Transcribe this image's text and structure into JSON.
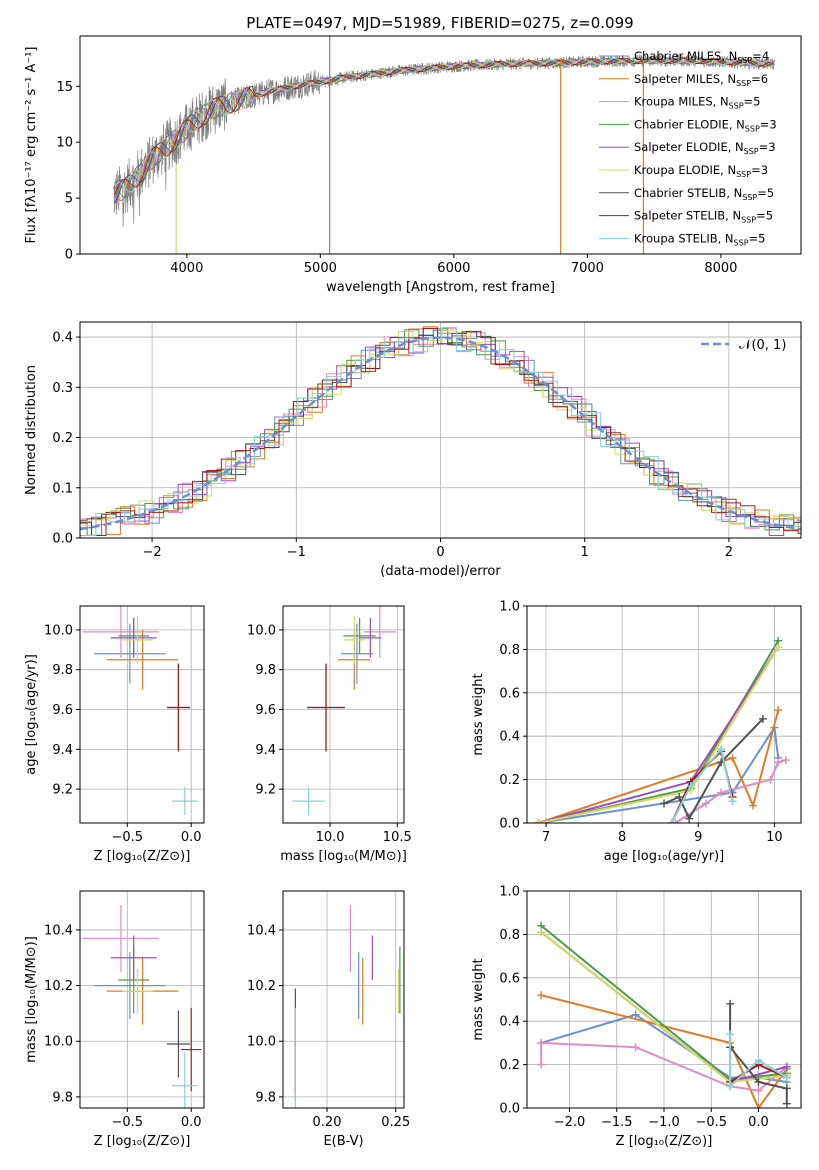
{
  "figure": {
    "title": "PLATE=0497, MJD=51989, FIBERID=0275, z=0.099"
  },
  "model_colors": [
    "#6a8fd9",
    "#e07b22",
    "#e38ac0",
    "#4f9b4f",
    "#9b4fc0",
    "#d4d85f",
    "#505050",
    "#a81b1b",
    "#86d1d6"
  ],
  "chart_data": [
    {
      "id": "spectrum",
      "type": "line",
      "title": "PLATE=0497, MJD=51989, FIBERID=0275, z=0.099",
      "xlabel": "wavelength [Angstrom, rest frame]",
      "ylabel": "Flux [fλ10⁻¹⁷ erg cm⁻² s⁻¹ A⁻¹]",
      "xlim": [
        3200,
        8600
      ],
      "ylim": [
        0,
        19.5
      ],
      "xticks": [
        4000,
        5000,
        6000,
        7000,
        8000
      ],
      "yticks": [
        0,
        5,
        10,
        15
      ],
      "grid": false,
      "legend_position": "right",
      "continuum": {
        "x": [
          3450,
          3550,
          3650,
          3750,
          3850,
          3950,
          4050,
          4200,
          4400,
          4600,
          4800,
          5000,
          5200,
          5400,
          5600,
          5800,
          6000,
          6200,
          6400,
          6600,
          6800,
          7000,
          7200,
          7400,
          7600,
          7800,
          8000,
          8200,
          8400
        ],
        "y": [
          5.2,
          6.0,
          7.2,
          8.6,
          9.6,
          10.6,
          11.8,
          13.0,
          13.8,
          14.5,
          15.0,
          15.4,
          15.8,
          16.1,
          16.4,
          16.6,
          16.8,
          16.9,
          17.0,
          17.05,
          17.1,
          17.2,
          17.25,
          17.3,
          17.3,
          17.3,
          17.2,
          17.1,
          17.0
        ]
      },
      "spikes": [
        {
          "x": 5070,
          "ymin": 0,
          "ymax": 19.5
        },
        {
          "x": 6800,
          "ymin": 0,
          "ymax": 17.5
        },
        {
          "x": 7420,
          "ymin": 0,
          "ymax": 17.5
        },
        {
          "x": 3920,
          "ymin": 0,
          "ymax": 8
        }
      ],
      "legend": [
        {
          "label": "Chabrier MILES, N",
          "sub": "SSP",
          "suffix": "=4"
        },
        {
          "label": "Salpeter MILES, N",
          "sub": "SSP",
          "suffix": "=6"
        },
        {
          "label": "Kroupa MILES, N",
          "sub": "SSP",
          "suffix": "=5"
        },
        {
          "label": "Chabrier ELODIE, N",
          "sub": "SSP",
          "suffix": "=3"
        },
        {
          "label": "Salpeter ELODIE, N",
          "sub": "SSP",
          "suffix": "=3"
        },
        {
          "label": "Kroupa ELODIE, N",
          "sub": "SSP",
          "suffix": "=3"
        },
        {
          "label": "Chabrier STELIB, N",
          "sub": "SSP",
          "suffix": "=5"
        },
        {
          "label": "Salpeter STELIB, N",
          "sub": "SSP",
          "suffix": "=5"
        },
        {
          "label": "Kroupa STELIB, N",
          "sub": "SSP",
          "suffix": "=5"
        }
      ]
    },
    {
      "id": "residuals",
      "type": "line",
      "xlabel": "(data-model)/error",
      "ylabel": "Normed distribution",
      "xlim": [
        -2.5,
        2.5
      ],
      "ylim": [
        0,
        0.43
      ],
      "xticks": [
        -2,
        -1,
        0,
        1,
        2
      ],
      "yticks": [
        0.0,
        0.1,
        0.2,
        0.3,
        0.4
      ],
      "grid": true,
      "legend_position": "top-right",
      "legend": [
        {
          "label": "𝒩(0, 1)"
        }
      ],
      "bin_width": 0.1,
      "normal_curve": {
        "mean": 0,
        "sigma": 1,
        "color": "#6a8fd9"
      }
    },
    {
      "id": "age-vs-Z",
      "type": "scatter",
      "xlabel": "Z [log₁₀(Z/Z⊙)]",
      "ylabel": "age  [log₁₀(age/yr)]",
      "xlim": [
        -0.87,
        0.1
      ],
      "ylim": [
        9.03,
        10.12
      ],
      "xticks": [
        -0.5,
        0.0
      ],
      "yticks": [
        9.2,
        9.4,
        9.6,
        9.8,
        10.0
      ],
      "grid": true,
      "points": [
        {
          "x": -0.48,
          "y": 9.88,
          "xerr": 0.28,
          "yerr": 0.15
        },
        {
          "x": -0.38,
          "y": 9.85,
          "xerr": 0.28,
          "yerr": 0.15
        },
        {
          "x": -0.55,
          "y": 9.99,
          "xerr": 0.3,
          "yerr": 0.13
        },
        {
          "x": -0.45,
          "y": 9.97,
          "xerr": 0.12,
          "yerr": 0.09
        },
        {
          "x": -0.45,
          "y": 9.96,
          "xerr": 0.18,
          "yerr": 0.1
        },
        {
          "x": -0.42,
          "y": 9.95,
          "xerr": 0.12,
          "yerr": 0.12
        },
        {
          "x": -0.1,
          "y": 9.61,
          "xerr": 0.09,
          "yerr": 0.22
        },
        {
          "x": -0.1,
          "y": 9.61,
          "xerr": 0.09,
          "yerr": 0.22
        },
        {
          "x": -0.05,
          "y": 9.14,
          "xerr": 0.1,
          "yerr": 0.07
        }
      ]
    },
    {
      "id": "age-vs-mass",
      "type": "scatter",
      "xlabel": "mass [log₁₀(M/M⊙)]",
      "ylabel": "",
      "xlim": [
        9.65,
        10.55
      ],
      "ylim": [
        9.03,
        10.12
      ],
      "xticks": [
        10.0,
        10.5
      ],
      "yticks": [
        9.2,
        9.4,
        9.6,
        9.8,
        10.0
      ],
      "grid": true,
      "points": [
        {
          "x": 10.2,
          "y": 9.88,
          "xerr": 0.12,
          "yerr": 0.15
        },
        {
          "x": 10.18,
          "y": 9.85,
          "xerr": 0.12,
          "yerr": 0.15
        },
        {
          "x": 10.37,
          "y": 9.99,
          "xerr": 0.12,
          "yerr": 0.13
        },
        {
          "x": 10.22,
          "y": 9.97,
          "xerr": 0.12,
          "yerr": 0.09
        },
        {
          "x": 10.3,
          "y": 9.96,
          "xerr": 0.08,
          "yerr": 0.1
        },
        {
          "x": 10.18,
          "y": 9.95,
          "xerr": 0.08,
          "yerr": 0.12
        },
        {
          "x": 9.97,
          "y": 9.61,
          "xerr": 0.14,
          "yerr": 0.22
        },
        {
          "x": 9.97,
          "y": 9.61,
          "xerr": 0.14,
          "yerr": 0.22
        },
        {
          "x": 9.84,
          "y": 9.14,
          "xerr": 0.12,
          "yerr": 0.07
        }
      ]
    },
    {
      "id": "weight-vs-age",
      "type": "line",
      "xlabel": "age  [log₁₀(age/yr)]",
      "ylabel": "mass weight",
      "xlim": [
        6.75,
        10.35
      ],
      "ylim": [
        0,
        1.0
      ],
      "xticks": [
        7,
        8,
        9,
        10
      ],
      "yticks": [
        0.0,
        0.2,
        0.4,
        0.6,
        0.8,
        1.0
      ],
      "grid": true,
      "series": [
        {
          "x": [
            6.9,
            9.45,
            10.0,
            10.05
          ],
          "y": [
            0.0,
            0.14,
            0.44,
            0.3
          ]
        },
        {
          "x": [
            6.9,
            9.45,
            9.72,
            10.05
          ],
          "y": [
            0.0,
            0.3,
            0.08,
            0.52
          ]
        },
        {
          "x": [
            8.7,
            9.1,
            9.3,
            9.95,
            10.05,
            10.15
          ],
          "y": [
            0.0,
            0.09,
            0.14,
            0.2,
            0.28,
            0.29
          ]
        },
        {
          "x": [
            6.9,
            8.9,
            10.05
          ],
          "y": [
            0.0,
            0.16,
            0.84
          ]
        },
        {
          "x": [
            6.9,
            8.9,
            10.05
          ],
          "y": [
            0.0,
            0.19,
            0.81
          ]
        },
        {
          "x": [
            6.9,
            8.9,
            10.05
          ],
          "y": [
            0.0,
            0.15,
            0.81
          ]
        },
        {
          "x": [
            8.55,
            8.75,
            8.88,
            9.3,
            9.85
          ],
          "y": [
            0.09,
            0.12,
            0.02,
            0.28,
            0.48
          ]
        },
        {
          "x": [
            8.65,
            8.9,
            9.3,
            9.45
          ],
          "y": [
            0.0,
            0.19,
            0.33,
            0.12
          ]
        },
        {
          "x": [
            8.65,
            8.9,
            9.3,
            9.45
          ],
          "y": [
            0.0,
            0.17,
            0.34,
            0.1
          ]
        }
      ]
    },
    {
      "id": "mass-vs-Z",
      "type": "scatter",
      "xlabel": "Z [log₁₀(Z/Z⊙)]",
      "ylabel": "mass [log₁₀(M/M⊙)]",
      "xlim": [
        -0.87,
        0.1
      ],
      "ylim": [
        9.76,
        10.54
      ],
      "xticks": [
        -0.5,
        0.0
      ],
      "yticks": [
        9.8,
        10.0,
        10.2,
        10.4
      ],
      "grid": true,
      "points": [
        {
          "x": -0.48,
          "y": 10.2,
          "xerr": 0.28,
          "yerr": 0.12
        },
        {
          "x": -0.38,
          "y": 10.18,
          "xerr": 0.28,
          "yerr": 0.12
        },
        {
          "x": -0.55,
          "y": 10.37,
          "xerr": 0.3,
          "yerr": 0.12
        },
        {
          "x": -0.45,
          "y": 10.22,
          "xerr": 0.12,
          "yerr": 0.12
        },
        {
          "x": -0.45,
          "y": 10.3,
          "xerr": 0.18,
          "yerr": 0.08
        },
        {
          "x": -0.42,
          "y": 10.18,
          "xerr": 0.12,
          "yerr": 0.08
        },
        {
          "x": -0.1,
          "y": 9.99,
          "xerr": 0.09,
          "yerr": 0.12
        },
        {
          "x": 0.0,
          "y": 9.97,
          "xerr": 0.08,
          "yerr": 0.15
        },
        {
          "x": -0.05,
          "y": 9.84,
          "xerr": 0.1,
          "yerr": 0.12
        }
      ]
    },
    {
      "id": "mass-vs-ebv",
      "type": "scatter",
      "xlabel": "E(B-V)",
      "ylabel": "",
      "xlim": [
        0.168,
        0.256
      ],
      "ylim": [
        9.76,
        10.54
      ],
      "xticks": [
        0.2,
        0.25
      ],
      "yticks": [
        9.8,
        10.0,
        10.2,
        10.4
      ],
      "grid": true,
      "points": [
        {
          "x": 0.223,
          "y": 10.2,
          "xerr": 0,
          "yerr": 0.12
        },
        {
          "x": 0.226,
          "y": 10.18,
          "xerr": 0,
          "yerr": 0.12
        },
        {
          "x": 0.217,
          "y": 10.37,
          "xerr": 0,
          "yerr": 0.12
        },
        {
          "x": 0.253,
          "y": 10.22,
          "xerr": 0,
          "yerr": 0.12
        },
        {
          "x": 0.233,
          "y": 10.3,
          "xerr": 0,
          "yerr": 0.08
        },
        {
          "x": 0.252,
          "y": 10.18,
          "xerr": 0,
          "yerr": 0.08
        },
        {
          "x": 0.177,
          "y": 9.99,
          "xerr": 0,
          "yerr": 0.2
        },
        {
          "x": 0.177,
          "y": 9.97,
          "xerr": 0,
          "yerr": 0.15
        },
        {
          "x": 0.177,
          "y": 9.92,
          "xerr": 0,
          "yerr": 0.2
        }
      ]
    },
    {
      "id": "weight-vs-Z",
      "type": "line",
      "xlabel": "Z [log₁₀(Z/Z⊙)]",
      "ylabel": "mass weight",
      "xlim": [
        -2.45,
        0.45
      ],
      "ylim": [
        0,
        1.0
      ],
      "xticks": [
        -2.0,
        -1.5,
        -1.0,
        -0.5,
        0.0
      ],
      "yticks": [
        0.0,
        0.2,
        0.4,
        0.6,
        0.8,
        1.0
      ],
      "grid": true,
      "series": [
        {
          "x": [
            -2.3,
            -1.3,
            -0.3,
            0.0,
            0.3
          ],
          "y": [
            0.3,
            0.43,
            0.14,
            0.14,
            0.12
          ]
        },
        {
          "x": [
            -2.3,
            -0.3,
            0.0,
            0.3
          ],
          "y": [
            0.52,
            0.3,
            0.0,
            0.18
          ]
        },
        {
          "x": [
            -2.3,
            -2.3,
            -1.3,
            -0.3,
            0.0,
            0.3
          ],
          "y": [
            0.2,
            0.3,
            0.28,
            0.1,
            0.08,
            0.19
          ]
        },
        {
          "x": [
            -2.3,
            -0.3,
            0.3
          ],
          "y": [
            0.84,
            0.13,
            0.16
          ]
        },
        {
          "x": [
            -2.3,
            -0.3,
            0.3
          ],
          "y": [
            0.81,
            0.12,
            0.19
          ]
        },
        {
          "x": [
            -2.3,
            -0.3,
            0.3
          ],
          "y": [
            0.81,
            0.12,
            0.15
          ]
        },
        {
          "x": [
            -0.3,
            -0.3,
            0.0,
            0.3,
            0.3
          ],
          "y": [
            0.48,
            0.28,
            0.12,
            0.09,
            0.02
          ]
        },
        {
          "x": [
            -0.3,
            0.0,
            0.3
          ],
          "y": [
            0.12,
            0.2,
            0.14
          ]
        },
        {
          "x": [
            -0.3,
            -0.3,
            0.0,
            0.3
          ],
          "y": [
            0.34,
            0.1,
            0.22,
            0.14
          ]
        }
      ]
    }
  ]
}
